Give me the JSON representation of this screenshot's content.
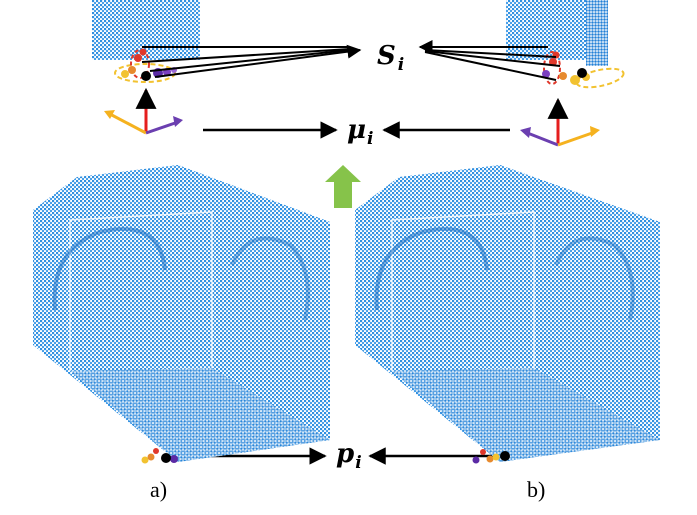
{
  "labels": {
    "s_main": "S",
    "s_sub": "i",
    "mu_main": "μ",
    "mu_sub": "i",
    "p_main": "p",
    "p_sub": "i",
    "caption_a": "a)",
    "caption_b": "b)"
  },
  "colors": {
    "point_cloud": "#2f8fe0",
    "point_cloud_dark": "#1b6fc2",
    "arrow": "#000000",
    "up_arrow": "#86c34a",
    "axis_red": "#e51e1e",
    "axis_orange": "#f5b21f",
    "axis_purple": "#6b3fb0",
    "cluster_purple": "#5b2aa5",
    "cluster_yellow": "#f2c230",
    "cluster_red": "#e0382b"
  }
}
